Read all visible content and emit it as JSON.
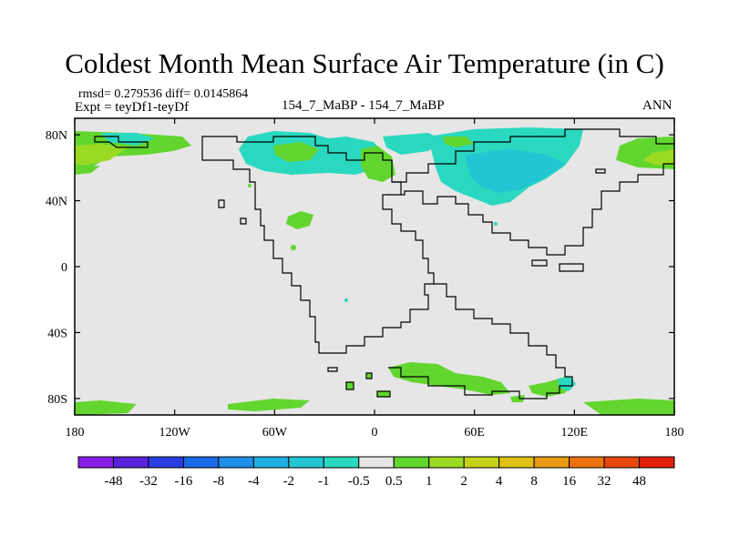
{
  "figure": {
    "title": "Coldest Month Mean Surface Air Temperature (in C)",
    "stats_line": "rmsd= 0.279536 diff= 0.0145864",
    "experiment_line": "Expt = teyDf1-teyDf",
    "center_label": "154_7_MaBP - 154_7_MaBP",
    "season": "ANN"
  },
  "axes": {
    "lat_labels": [
      "80N",
      "40N",
      "0",
      "40S",
      "80S"
    ],
    "lat_values": [
      80,
      40,
      0,
      -40,
      -80
    ],
    "lon_labels": [
      "180",
      "120W",
      "60W",
      "0",
      "60E",
      "120E",
      "180"
    ],
    "lon_values": [
      -180,
      -120,
      -60,
      0,
      60,
      120,
      180
    ],
    "lon_range": [
      -180,
      180
    ],
    "lat_range": [
      -90,
      90
    ]
  },
  "colorbar": {
    "labels": [
      "-48",
      "-32",
      "-16",
      "-8",
      "-4",
      "-2",
      "-1",
      "-0.5",
      "0.5",
      "1",
      "2",
      "4",
      "8",
      "16",
      "32",
      "48"
    ],
    "colors": [
      "#8a1ee6",
      "#5a22dc",
      "#2a3ee0",
      "#1a6ae6",
      "#1e8ee6",
      "#1eaee2",
      "#22c6d2",
      "#2ad8c0",
      "#e6e6e6",
      "#62d62e",
      "#9ada22",
      "#c6d21a",
      "#e0c012",
      "#e89a12",
      "#ec7210",
      "#e8460e",
      "#e0200c"
    ]
  },
  "colors": {
    "background_field": "#e6e6e6",
    "coast": "#000000"
  }
}
